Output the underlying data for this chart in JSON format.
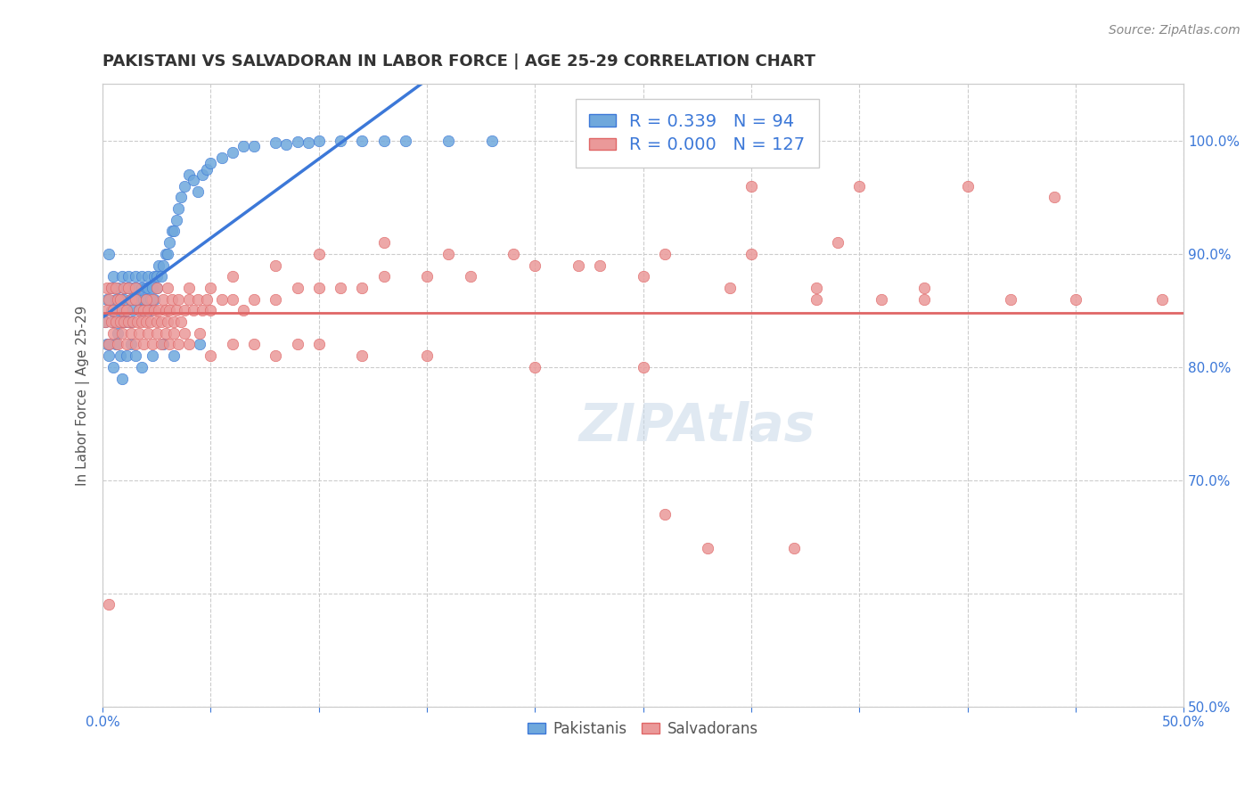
{
  "title": "PAKISTANI VS SALVADORAN IN LABOR FORCE | AGE 25-29 CORRELATION CHART",
  "source": "Source: ZipAtlas.com",
  "xlabel": "",
  "ylabel": "In Labor Force | Age 25-29",
  "xlim": [
    0.0,
    0.5
  ],
  "ylim": [
    0.5,
    1.05
  ],
  "xticks": [
    0.0,
    0.05,
    0.1,
    0.15,
    0.2,
    0.25,
    0.3,
    0.35,
    0.4,
    0.45,
    0.5
  ],
  "xticklabels": [
    "0.0%",
    "",
    "",
    "",
    "",
    "",
    "",
    "",
    "",
    "",
    "50.0%"
  ],
  "yticks_right": [
    0.5,
    0.6,
    0.7,
    0.8,
    0.9,
    1.0
  ],
  "yticklabels_right": [
    "50.0%",
    "",
    "70.0%",
    "80.0%",
    "90.0%",
    "100.0%"
  ],
  "blue_R": 0.339,
  "blue_N": 94,
  "pink_R": 0.0,
  "pink_N": 127,
  "blue_color": "#6fa8dc",
  "pink_color": "#ea9999",
  "blue_line_color": "#3c78d8",
  "pink_line_color": "#e06666",
  "watermark": "ZIPAtlas",
  "legend_label1": "Pakistanis",
  "legend_label2": "Salvadorans",
  "blue_scatter_x": [
    0.001,
    0.002,
    0.003,
    0.003,
    0.004,
    0.004,
    0.005,
    0.005,
    0.006,
    0.006,
    0.007,
    0.007,
    0.008,
    0.008,
    0.009,
    0.009,
    0.01,
    0.01,
    0.01,
    0.011,
    0.011,
    0.012,
    0.012,
    0.013,
    0.013,
    0.014,
    0.014,
    0.015,
    0.015,
    0.016,
    0.017,
    0.017,
    0.018,
    0.018,
    0.019,
    0.019,
    0.02,
    0.02,
    0.021,
    0.021,
    0.022,
    0.022,
    0.023,
    0.024,
    0.024,
    0.025,
    0.025,
    0.026,
    0.027,
    0.028,
    0.029,
    0.03,
    0.031,
    0.032,
    0.033,
    0.034,
    0.035,
    0.036,
    0.038,
    0.04,
    0.042,
    0.044,
    0.046,
    0.048,
    0.05,
    0.055,
    0.06,
    0.065,
    0.07,
    0.08,
    0.085,
    0.09,
    0.095,
    0.1,
    0.11,
    0.12,
    0.13,
    0.14,
    0.16,
    0.18,
    0.002,
    0.003,
    0.005,
    0.007,
    0.008,
    0.009,
    0.011,
    0.013,
    0.015,
    0.018,
    0.023,
    0.028,
    0.033,
    0.045
  ],
  "blue_scatter_y": [
    0.84,
    0.86,
    0.82,
    0.9,
    0.87,
    0.85,
    0.88,
    0.84,
    0.86,
    0.82,
    0.85,
    0.87,
    0.86,
    0.84,
    0.88,
    0.85,
    0.86,
    0.84,
    0.87,
    0.85,
    0.84,
    0.87,
    0.88,
    0.86,
    0.84,
    0.87,
    0.85,
    0.86,
    0.88,
    0.87,
    0.86,
    0.85,
    0.88,
    0.87,
    0.86,
    0.85,
    0.87,
    0.86,
    0.88,
    0.87,
    0.86,
    0.85,
    0.87,
    0.88,
    0.86,
    0.87,
    0.88,
    0.89,
    0.88,
    0.89,
    0.9,
    0.9,
    0.91,
    0.92,
    0.92,
    0.93,
    0.94,
    0.95,
    0.96,
    0.97,
    0.965,
    0.955,
    0.97,
    0.975,
    0.98,
    0.985,
    0.99,
    0.995,
    0.995,
    0.998,
    0.997,
    0.999,
    0.998,
    1.0,
    1.0,
    1.0,
    1.0,
    1.0,
    1.0,
    1.0,
    0.82,
    0.81,
    0.8,
    0.83,
    0.81,
    0.79,
    0.81,
    0.82,
    0.81,
    0.8,
    0.81,
    0.82,
    0.81,
    0.82
  ],
  "pink_scatter_x": [
    0.001,
    0.002,
    0.003,
    0.004,
    0.005,
    0.006,
    0.007,
    0.008,
    0.009,
    0.01,
    0.011,
    0.012,
    0.013,
    0.014,
    0.015,
    0.016,
    0.017,
    0.018,
    0.019,
    0.02,
    0.021,
    0.022,
    0.023,
    0.024,
    0.025,
    0.026,
    0.027,
    0.028,
    0.029,
    0.03,
    0.031,
    0.032,
    0.033,
    0.034,
    0.035,
    0.036,
    0.038,
    0.04,
    0.042,
    0.044,
    0.046,
    0.048,
    0.05,
    0.055,
    0.06,
    0.065,
    0.07,
    0.08,
    0.09,
    0.1,
    0.11,
    0.12,
    0.13,
    0.15,
    0.17,
    0.2,
    0.23,
    0.26,
    0.3,
    0.34,
    0.003,
    0.005,
    0.007,
    0.009,
    0.011,
    0.013,
    0.015,
    0.017,
    0.019,
    0.021,
    0.023,
    0.025,
    0.027,
    0.029,
    0.031,
    0.033,
    0.035,
    0.038,
    0.04,
    0.045,
    0.05,
    0.06,
    0.07,
    0.08,
    0.09,
    0.1,
    0.12,
    0.15,
    0.2,
    0.25,
    0.002,
    0.004,
    0.006,
    0.008,
    0.01,
    0.012,
    0.015,
    0.02,
    0.025,
    0.03,
    0.04,
    0.05,
    0.06,
    0.08,
    0.1,
    0.13,
    0.16,
    0.19,
    0.22,
    0.25,
    0.29,
    0.33,
    0.38,
    0.42,
    0.45,
    0.49,
    0.3,
    0.35,
    0.4,
    0.44,
    0.003,
    0.32,
    0.28,
    0.26,
    0.38,
    0.36,
    0.33
  ],
  "pink_scatter_y": [
    0.84,
    0.85,
    0.86,
    0.84,
    0.85,
    0.84,
    0.86,
    0.84,
    0.85,
    0.84,
    0.85,
    0.84,
    0.86,
    0.84,
    0.86,
    0.84,
    0.85,
    0.84,
    0.85,
    0.84,
    0.85,
    0.84,
    0.86,
    0.85,
    0.84,
    0.85,
    0.84,
    0.86,
    0.85,
    0.84,
    0.85,
    0.86,
    0.84,
    0.85,
    0.86,
    0.84,
    0.85,
    0.86,
    0.85,
    0.86,
    0.85,
    0.86,
    0.85,
    0.86,
    0.86,
    0.85,
    0.86,
    0.86,
    0.87,
    0.87,
    0.87,
    0.87,
    0.88,
    0.88,
    0.88,
    0.89,
    0.89,
    0.9,
    0.9,
    0.91,
    0.82,
    0.83,
    0.82,
    0.83,
    0.82,
    0.83,
    0.82,
    0.83,
    0.82,
    0.83,
    0.82,
    0.83,
    0.82,
    0.83,
    0.82,
    0.83,
    0.82,
    0.83,
    0.82,
    0.83,
    0.81,
    0.82,
    0.82,
    0.81,
    0.82,
    0.82,
    0.81,
    0.81,
    0.8,
    0.8,
    0.87,
    0.87,
    0.87,
    0.86,
    0.87,
    0.87,
    0.87,
    0.86,
    0.87,
    0.87,
    0.87,
    0.87,
    0.88,
    0.89,
    0.9,
    0.91,
    0.9,
    0.9,
    0.89,
    0.88,
    0.87,
    0.87,
    0.87,
    0.86,
    0.86,
    0.86,
    0.96,
    0.96,
    0.96,
    0.95,
    0.59,
    0.64,
    0.64,
    0.67,
    0.86,
    0.86,
    0.86
  ]
}
